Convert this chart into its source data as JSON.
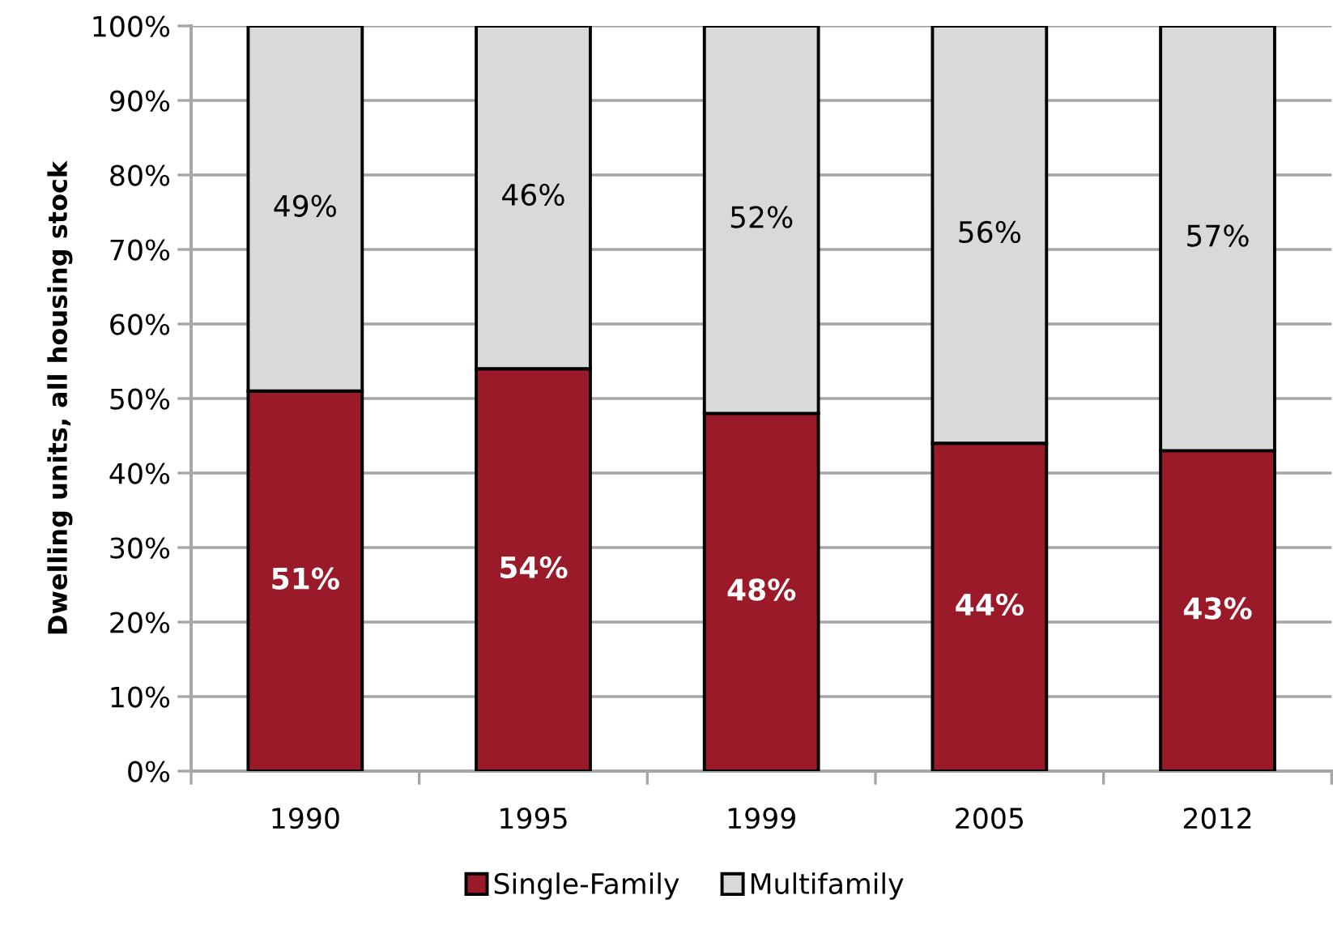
{
  "chart_data": {
    "type": "bar",
    "stacked": true,
    "categories": [
      "1990",
      "1995",
      "1999",
      "2005",
      "2012"
    ],
    "ylabel": "Dwelling units, all housing stock",
    "series": [
      {
        "name": "Single-Family",
        "color": "#9b1a2a",
        "values": [
          51,
          54,
          48,
          44,
          43
        ],
        "value_labels": [
          "51%",
          "54%",
          "48%",
          "44%",
          "43%"
        ]
      },
      {
        "name": "Multifamily",
        "color": "#d9d9d9",
        "values": [
          49,
          46,
          52,
          56,
          57
        ],
        "value_labels": [
          "49%",
          "46%",
          "52%",
          "56%",
          "57%"
        ]
      }
    ],
    "ylim": [
      0,
      100
    ],
    "yticks": [
      {
        "value": 0,
        "label": "0%"
      },
      {
        "value": 10,
        "label": "10%"
      },
      {
        "value": 20,
        "label": "20%"
      },
      {
        "value": 30,
        "label": "30%"
      },
      {
        "value": 40,
        "label": "40%"
      },
      {
        "value": 50,
        "label": "50%"
      },
      {
        "value": 60,
        "label": "60%"
      },
      {
        "value": 70,
        "label": "70%"
      },
      {
        "value": 80,
        "label": "80%"
      },
      {
        "value": 90,
        "label": "90%"
      },
      {
        "value": 100,
        "label": "100%"
      }
    ],
    "grid": "y",
    "legend": "bottom"
  }
}
